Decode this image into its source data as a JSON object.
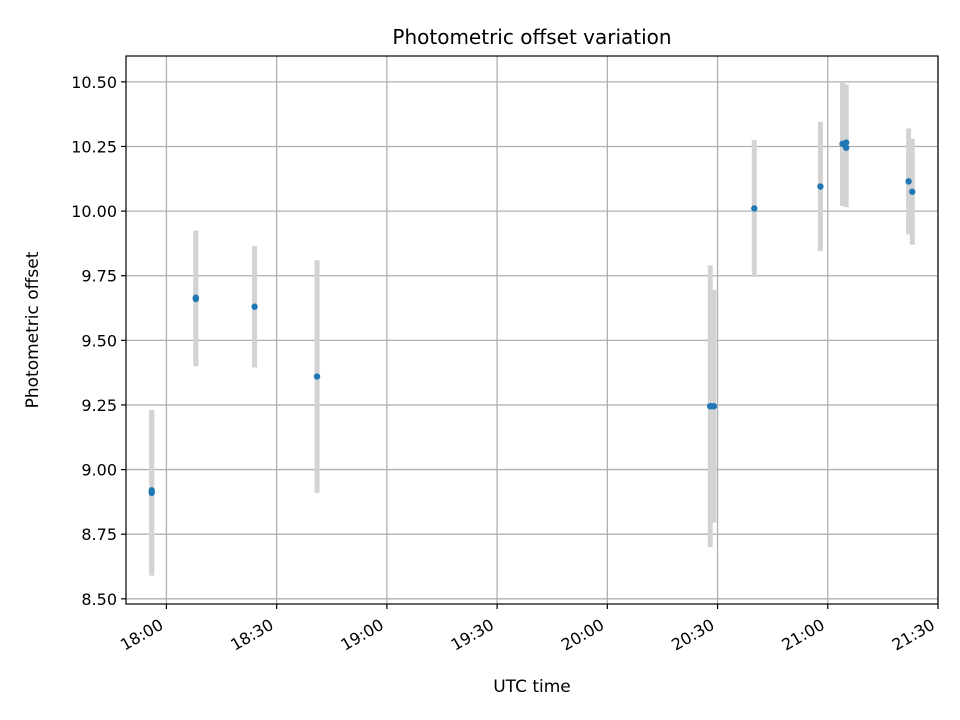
{
  "chart_data": {
    "type": "scatter",
    "title": "Photometric offset variation",
    "xlabel": "UTC time",
    "ylabel": "Photometric offset",
    "x_unit": "HH:MM UTC",
    "xlim": [
      "17:49",
      "21:30"
    ],
    "ylim": [
      8.48,
      10.6
    ],
    "x_ticks": [
      "18:00",
      "18:30",
      "19:00",
      "19:30",
      "20:00",
      "20:30",
      "21:00",
      "21:30"
    ],
    "y_ticks": [
      "8.50",
      "8.75",
      "9.00",
      "9.25",
      "9.50",
      "9.75",
      "10.00",
      "10.25",
      "10.50"
    ],
    "grid": true,
    "marker_color": "#1f77b4",
    "errorbar_color": "#d3d3d3",
    "points": [
      {
        "x": "17:56",
        "y": 8.91,
        "err": 0.32
      },
      {
        "x": "17:56",
        "y": 8.92,
        "err": 0.31
      },
      {
        "x": "18:08",
        "y": 9.66,
        "err": 0.26
      },
      {
        "x": "18:08",
        "y": 9.665,
        "err": 0.26
      },
      {
        "x": "18:24",
        "y": 9.63,
        "err": 0.235
      },
      {
        "x": "18:41",
        "y": 9.36,
        "err": 0.45
      },
      {
        "x": "20:28",
        "y": 9.245,
        "err": 0.545
      },
      {
        "x": "20:29",
        "y": 9.245,
        "err": 0.45
      },
      {
        "x": "20:40",
        "y": 10.01,
        "err": 0.265
      },
      {
        "x": "20:58",
        "y": 10.095,
        "err": 0.25
      },
      {
        "x": "21:04",
        "y": 10.26,
        "err": 0.24
      },
      {
        "x": "21:05",
        "y": 10.245,
        "err": 0.23
      },
      {
        "x": "21:05",
        "y": 10.265,
        "err": 0.225
      },
      {
        "x": "21:22",
        "y": 10.115,
        "err": 0.205
      },
      {
        "x": "21:23",
        "y": 10.075,
        "err": 0.205
      }
    ]
  }
}
